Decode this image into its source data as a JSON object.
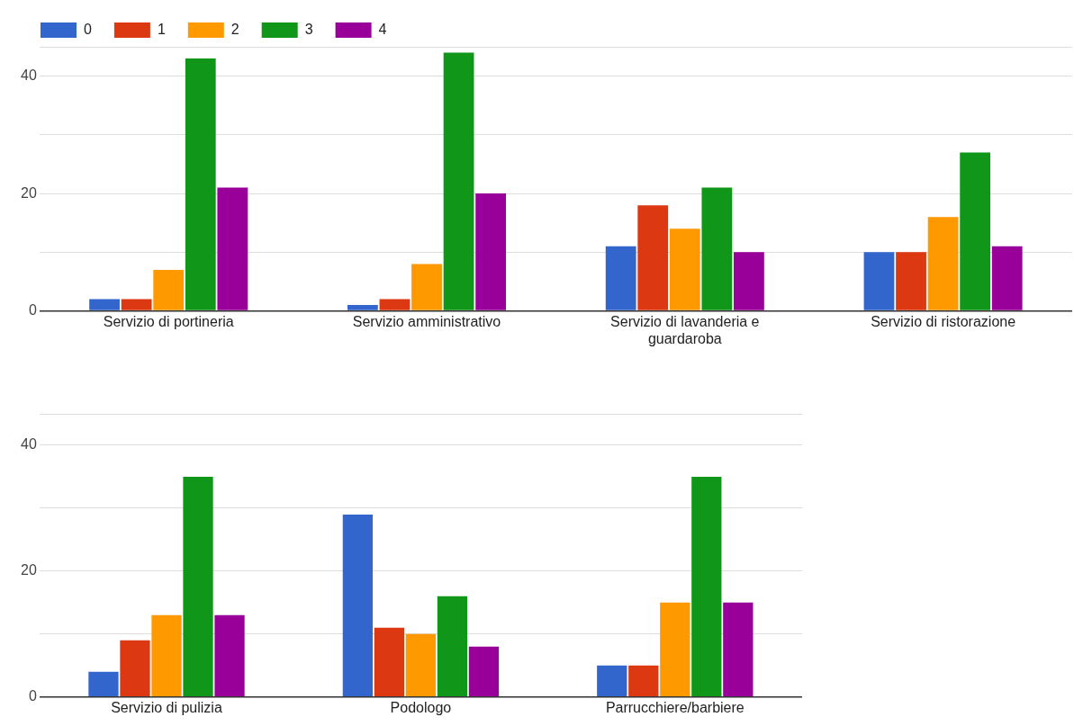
{
  "chart_data": [
    {
      "type": "bar",
      "categories": [
        "Servizio di portineria",
        "Servizio amministrativo",
        "Servizio di lavanderia e guardaroba",
        "Servizio di ristorazione"
      ],
      "series": [
        {
          "name": "0",
          "color": "#3366cc",
          "values": [
            2,
            1,
            11,
            10
          ]
        },
        {
          "name": "1",
          "color": "#dc3912",
          "values": [
            2,
            2,
            18,
            10
          ]
        },
        {
          "name": "2",
          "color": "#ff9900",
          "values": [
            7,
            8,
            14,
            16
          ]
        },
        {
          "name": "3",
          "color": "#109618",
          "values": [
            43,
            44,
            21,
            27
          ]
        },
        {
          "name": "4",
          "color": "#990099",
          "values": [
            21,
            20,
            10,
            11
          ]
        }
      ],
      "ylim": [
        0,
        45
      ],
      "yticks": [
        0,
        {
          "value": 10,
          "label": null
        },
        20,
        {
          "value": 30,
          "label": null
        },
        40,
        {
          "value": 45,
          "label": null
        }
      ],
      "grid": "y",
      "legend": "top left"
    },
    {
      "type": "bar",
      "categories": [
        "Servizio di pulizia",
        "Podologo",
        "Parrucchiere/barbiere"
      ],
      "series": [
        {
          "name": "0",
          "color": "#3366cc",
          "values": [
            4,
            29,
            5
          ]
        },
        {
          "name": "1",
          "color": "#dc3912",
          "values": [
            9,
            11,
            5
          ]
        },
        {
          "name": "2",
          "color": "#ff9900",
          "values": [
            13,
            10,
            15
          ]
        },
        {
          "name": "3",
          "color": "#109618",
          "values": [
            35,
            16,
            35
          ]
        },
        {
          "name": "4",
          "color": "#990099",
          "values": [
            13,
            8,
            15
          ]
        }
      ],
      "ylim": [
        0,
        45
      ],
      "yticks": [
        0,
        {
          "value": 10,
          "label": null
        },
        20,
        {
          "value": 30,
          "label": null
        },
        40,
        {
          "value": 45,
          "label": null
        }
      ],
      "grid": "y",
      "legend": false
    }
  ]
}
